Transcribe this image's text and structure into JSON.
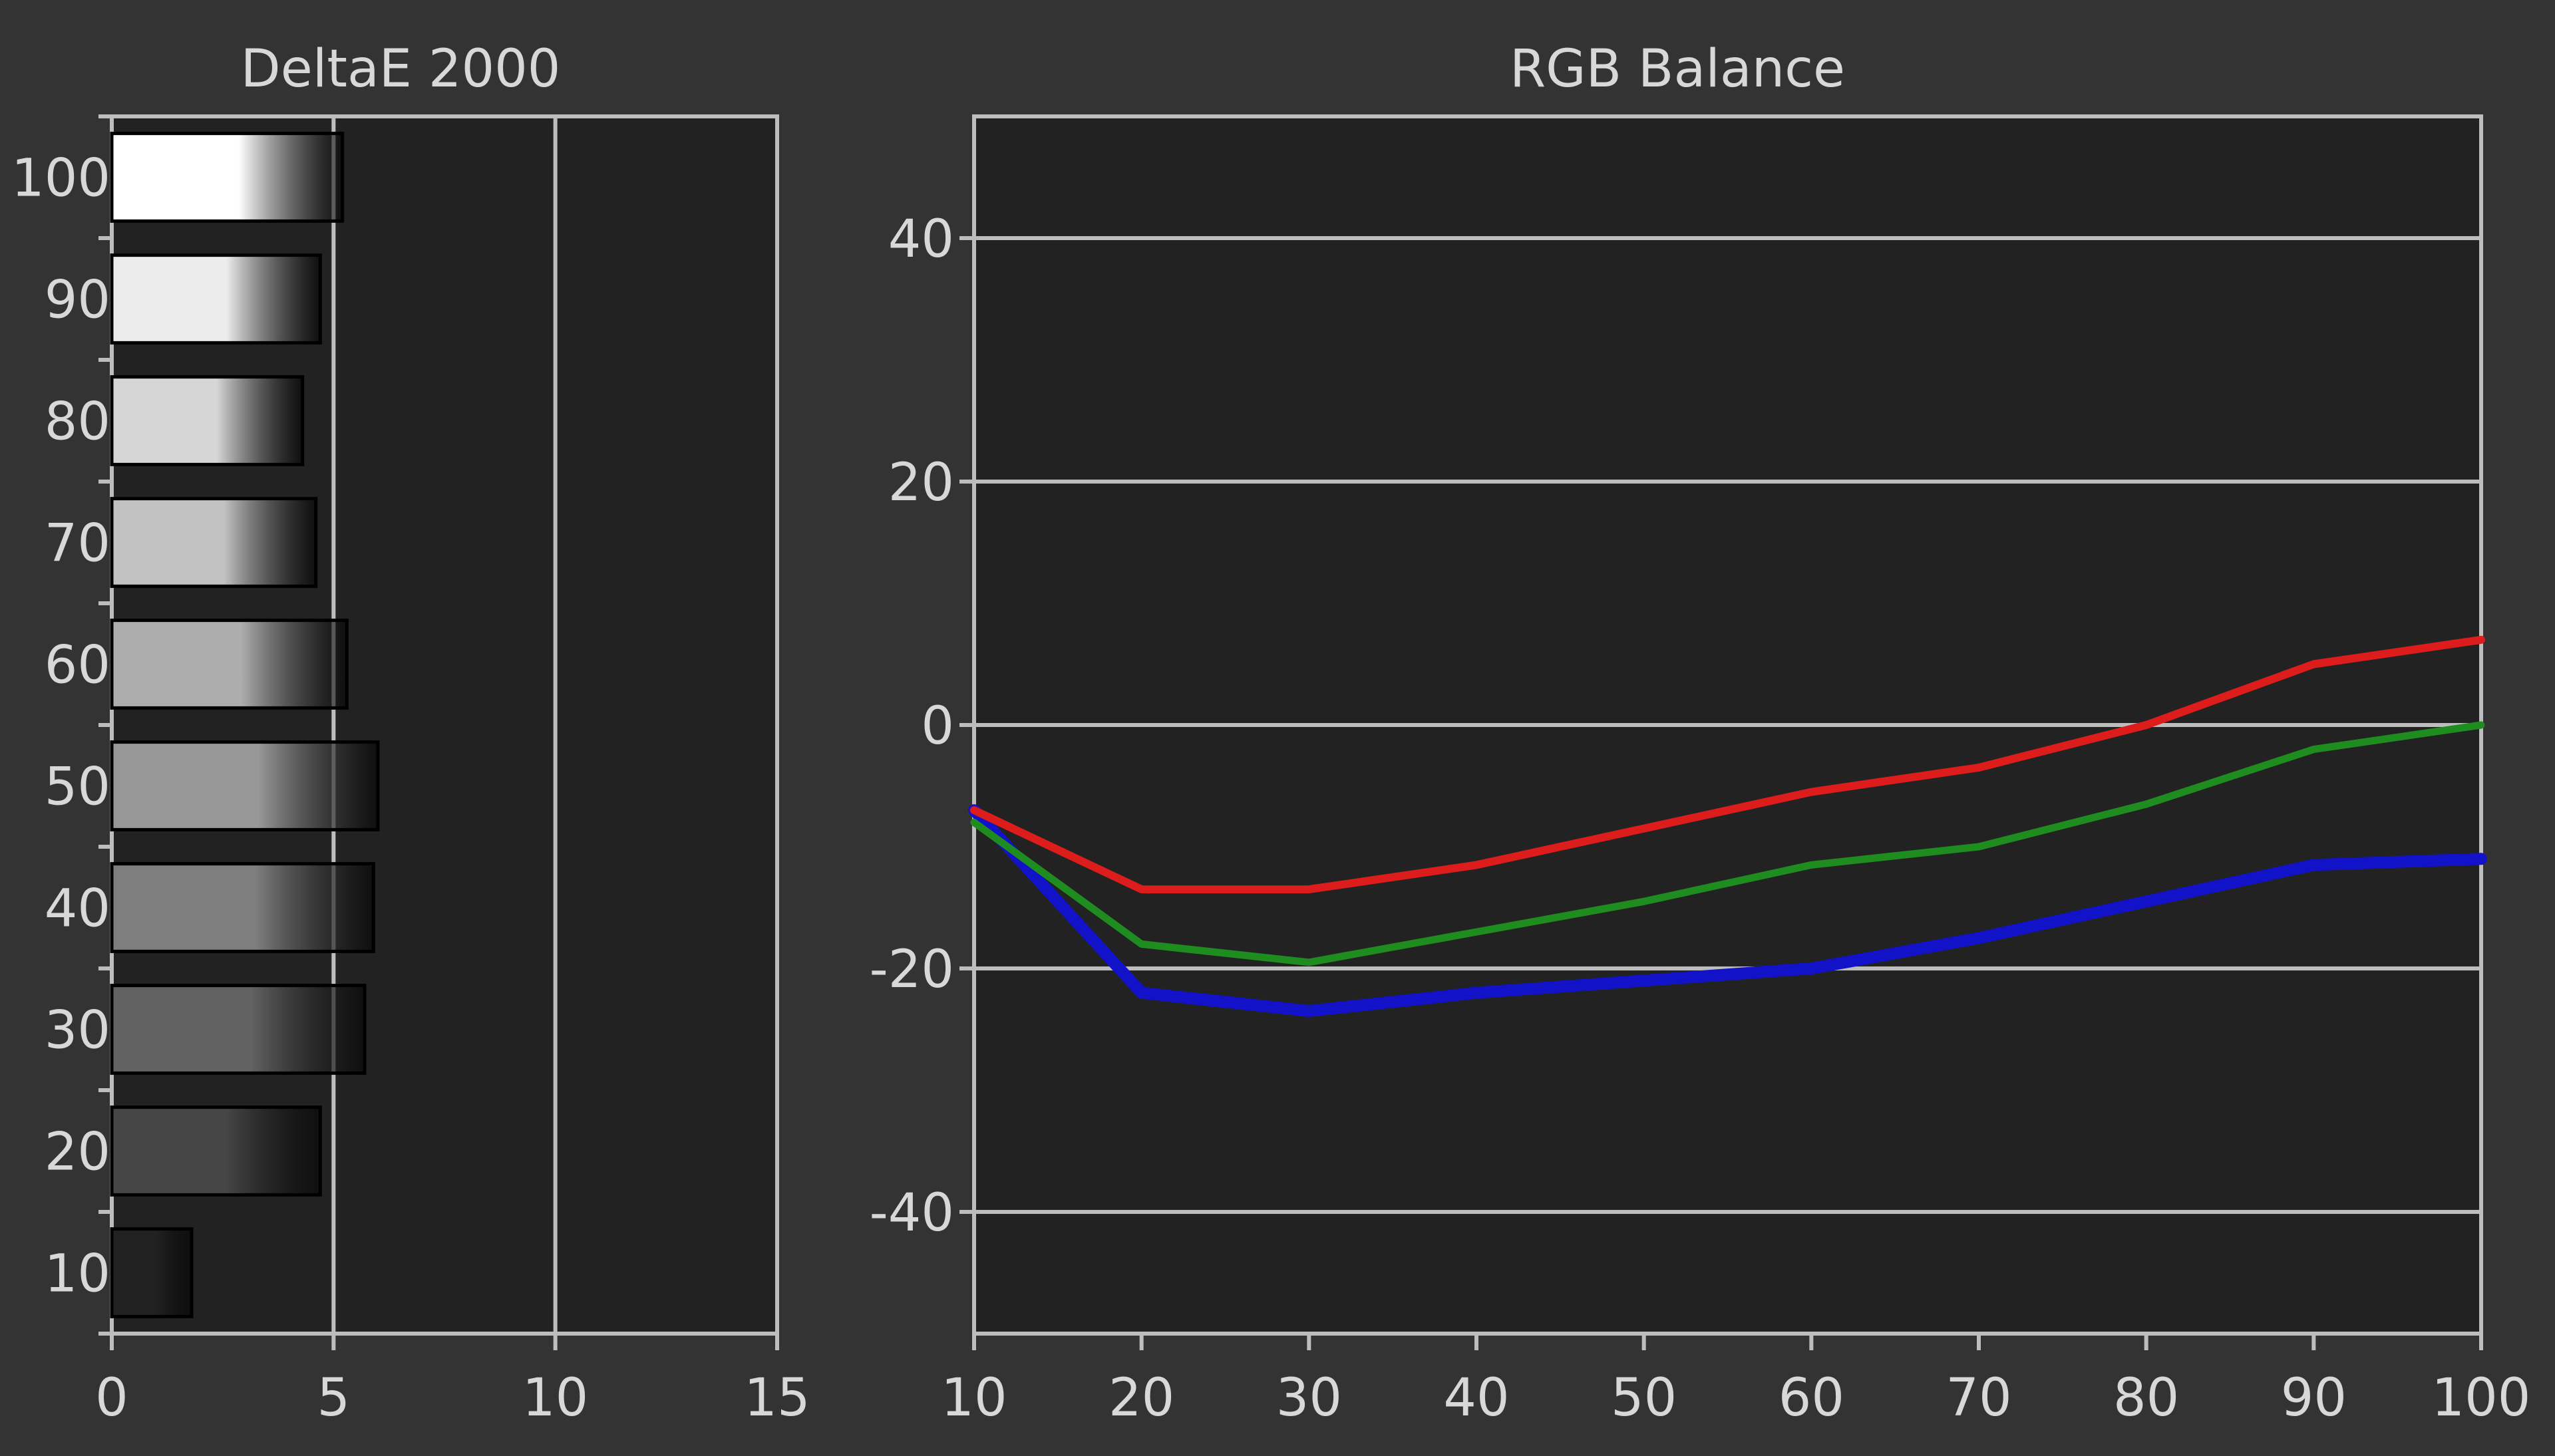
{
  "colors": {
    "background": "#333333",
    "plot_background": "#222222",
    "grid": "#bdbdbd",
    "text": "#d8d8d8",
    "red_series": "#dd1c1c",
    "green_series": "#1f8c1f",
    "blue_series": "#1212c8"
  },
  "chart_data": [
    {
      "type": "bar",
      "orientation": "horizontal",
      "title": "DeltaE 2000",
      "categories": [
        "100",
        "90",
        "80",
        "70",
        "60",
        "50",
        "40",
        "30",
        "20",
        "10"
      ],
      "values": [
        5.2,
        4.7,
        4.3,
        4.6,
        5.3,
        6.0,
        5.9,
        5.7,
        4.7,
        1.8
      ],
      "bar_shades": [
        "#ffffff",
        "#ececec",
        "#d6d6d6",
        "#c2c2c2",
        "#adadad",
        "#989898",
        "#7e7e7e",
        "#626262",
        "#464646",
        "#222222"
      ],
      "xlim": [
        0,
        15
      ],
      "x_ticks": [
        "0",
        "5",
        "10",
        "15"
      ],
      "grid": true
    },
    {
      "type": "line",
      "title": "RGB Balance",
      "x": [
        10,
        20,
        30,
        40,
        50,
        60,
        70,
        80,
        90,
        100
      ],
      "x_ticks": [
        "10",
        "20",
        "30",
        "40",
        "50",
        "60",
        "70",
        "80",
        "90",
        "100"
      ],
      "y_ticks": [
        "40",
        "20",
        "0",
        "-20",
        "-40"
      ],
      "ylim": [
        -50,
        50
      ],
      "grid": true,
      "series": [
        {
          "color": "#1212c8",
          "values": [
            -7,
            -22,
            -23.5,
            -22,
            -21,
            -20,
            -17.5,
            -14.5,
            -11.5,
            -11
          ]
        },
        {
          "color": "#1f8c1f",
          "values": [
            -8,
            -18,
            -19.5,
            -17,
            -14.5,
            -11.5,
            -10,
            -6.5,
            -2,
            0
          ]
        },
        {
          "color": "#dd1c1c",
          "values": [
            -7,
            -13.5,
            -13.5,
            -11.5,
            -8.5,
            -5.5,
            -3.5,
            0,
            5,
            7
          ]
        }
      ]
    }
  ]
}
